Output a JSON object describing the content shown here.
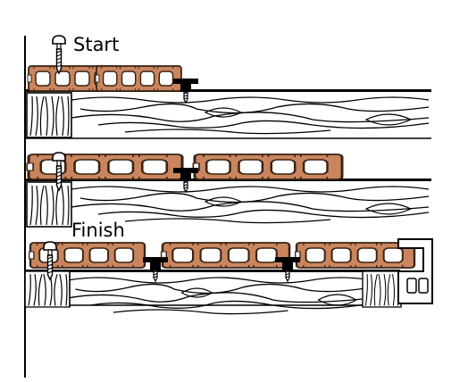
{
  "labels": {
    "start": "Start",
    "finish": "Finish"
  },
  "colors": {
    "board_fill": "#c9865e",
    "board_outline": "#3a2214",
    "line": "#000000",
    "background": "#ffffff"
  },
  "icons": {
    "start_fastener": "screw-icon",
    "hidden_clip": "t-clip-icon",
    "end_trim": "end-trim-icon"
  },
  "steps": [
    {
      "name": "step-1-start"
    },
    {
      "name": "step-2-clip-second-board"
    },
    {
      "name": "step-3-finish"
    }
  ]
}
